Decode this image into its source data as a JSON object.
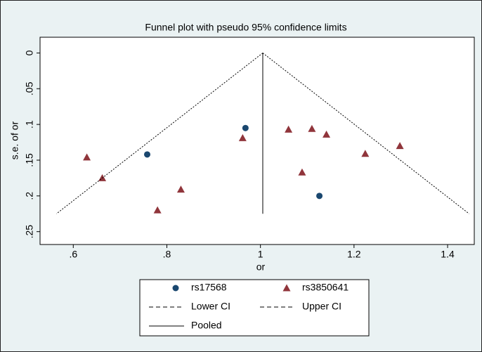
{
  "chart_data": {
    "type": "scatter",
    "title": "Funnel plot with pseudo 95% confidence limits",
    "x_label": "or",
    "y_label": "s.e. of or",
    "xlim": [
      0.529,
      1.457
    ],
    "ylim": [
      -0.022,
      0.268
    ],
    "y_reversed": true,
    "grid": false,
    "xticks": [
      {
        "value": 0.6,
        "label": ".6"
      },
      {
        "value": 0.8,
        "label": ".8"
      },
      1,
      1.2,
      1.4
    ],
    "yticks": [
      0,
      {
        "value": 0.05,
        "label": ".05"
      },
      {
        "value": 0.1,
        "label": ".1"
      },
      {
        "value": 0.15,
        "label": ".15"
      },
      {
        "value": 0.2,
        "label": ".2"
      },
      {
        "value": 0.25,
        "label": ".25"
      }
    ],
    "legend": "bottom",
    "series": [
      {
        "name": "rs17568",
        "marker": "circle",
        "color": "#1a476f",
        "x": [
          0.968,
          0.758,
          1.126
        ],
        "values": [
          0.105,
          0.142,
          0.2
        ]
      },
      {
        "name": "rs3850641",
        "marker": "triangle",
        "color": "#90353b",
        "x": [
          0.629,
          0.662,
          0.78,
          0.83,
          0.962,
          1.06,
          1.11,
          1.141,
          1.089,
          1.224,
          1.298
        ],
        "values": [
          0.146,
          0.175,
          0.22,
          0.191,
          0.119,
          0.107,
          0.106,
          0.114,
          0.167,
          0.141,
          0.13
        ]
      },
      {
        "name": "Lower CI",
        "marker": "dashed-line",
        "color": "#000000",
        "x": [
          1.005,
          0.564
        ],
        "values": [
          0,
          0.225
        ]
      },
      {
        "name": "Upper CI",
        "marker": "dashed-line",
        "color": "#000000",
        "x": [
          1.005,
          1.446
        ],
        "values": [
          0,
          0.225
        ]
      },
      {
        "name": "Pooled",
        "marker": "solid-line",
        "color": "#000000",
        "x": [
          1.005,
          1.005
        ],
        "values": [
          0,
          0.225
        ]
      }
    ]
  }
}
